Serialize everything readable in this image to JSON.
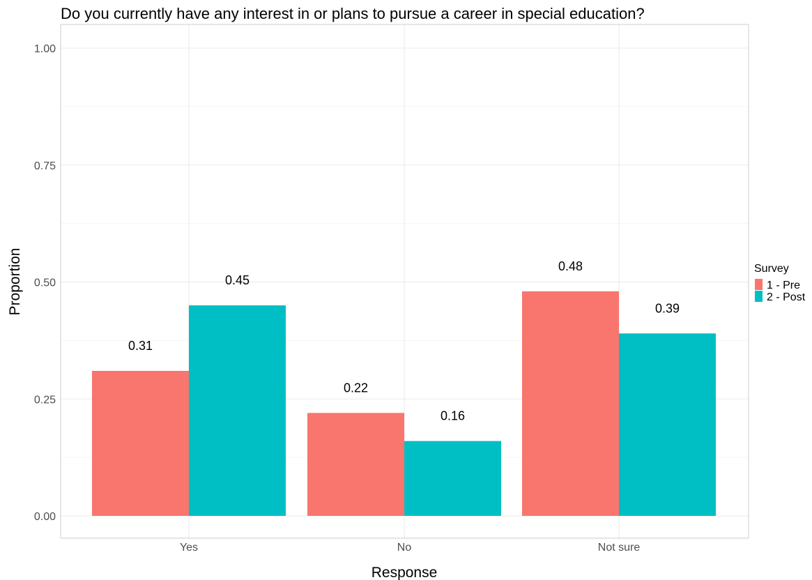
{
  "chart_data": {
    "type": "bar",
    "title": "Do you currently have any interest in or plans to pursue a career in special education?",
    "xlabel": "Response",
    "ylabel": "Proportion",
    "categories": [
      "Yes",
      "No",
      "Not sure"
    ],
    "series": [
      {
        "name": "1 - Pre",
        "values": [
          0.31,
          0.22,
          0.48
        ],
        "labels": [
          "0.31",
          "0.22",
          "0.48"
        ],
        "color": "#F8766D"
      },
      {
        "name": "2 - Post",
        "values": [
          0.45,
          0.16,
          0.39
        ],
        "labels": [
          "0.45",
          "0.16",
          "0.39"
        ],
        "color": "#00BFC4"
      }
    ],
    "ylim": [
      0,
      1
    ],
    "yticks": [
      0,
      0.25,
      0.5,
      0.75,
      1
    ],
    "ytick_labels": [
      "0.00",
      "0.25",
      "0.50",
      "0.75",
      "1.00"
    ],
    "grid": true,
    "legend": {
      "title": "Survey",
      "placement": "right"
    }
  }
}
